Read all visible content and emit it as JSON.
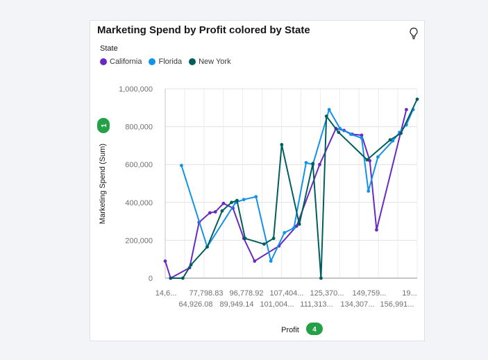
{
  "card": {
    "title": "Marketing Spend by Profit colored by State",
    "icon": "lightbulb-icon"
  },
  "legend": {
    "title": "State",
    "items": [
      {
        "label": "California",
        "color": "#6929c4"
      },
      {
        "label": "Florida",
        "color": "#1192e8"
      },
      {
        "label": "New York",
        "color": "#005d5d"
      }
    ]
  },
  "axes": {
    "ylabel": "Marketing Spend (Sum)",
    "xlabel": "Profit",
    "ybadge": "1",
    "xbadge": "4",
    "y_ticks": [
      "1,000,000",
      "800,000",
      "600,000",
      "400,000",
      "200,000",
      "0"
    ],
    "x_ticks_row1": [
      "14,6...",
      "77,798.83",
      "96,778.92",
      "107,404...",
      "125,370...",
      "149,759...",
      "19..."
    ],
    "x_ticks_row2": [
      "64,926.08",
      "89,949.14",
      "101,004...",
      "111,313...",
      "134,307...",
      "156,991..."
    ]
  },
  "chart_data": {
    "type": "line",
    "title": "Marketing Spend by Profit colored by State",
    "xlabel": "Profit",
    "ylabel": "Marketing Spend (Sum)",
    "ylim": [
      0,
      1000000
    ],
    "legend_position": "top-left",
    "grid": true,
    "series": [
      {
        "name": "California",
        "color": "#6929c4",
        "points": [
          [
            0.0,
            90000
          ],
          [
            0.2,
            0
          ],
          [
            0.9,
            55000
          ],
          [
            1.25,
            295000
          ],
          [
            1.65,
            345000
          ],
          [
            1.85,
            350000
          ],
          [
            2.15,
            395000
          ],
          [
            2.5,
            370000
          ],
          [
            2.9,
            210000
          ],
          [
            3.3,
            90000
          ],
          [
            4.2,
            170000
          ],
          [
            4.85,
            275000
          ],
          [
            5.7,
            600000
          ],
          [
            6.3,
            790000
          ],
          [
            6.6,
            780000
          ],
          [
            6.9,
            760000
          ],
          [
            7.25,
            755000
          ],
          [
            7.55,
            620000
          ],
          [
            7.8,
            255000
          ],
          [
            8.9,
            890000
          ]
        ]
      },
      {
        "name": "Florida",
        "color": "#1192e8",
        "points": [
          [
            0.6,
            595000
          ],
          [
            1.55,
            165000
          ],
          [
            2.6,
            400000
          ],
          [
            2.9,
            415000
          ],
          [
            3.35,
            430000
          ],
          [
            3.9,
            90000
          ],
          [
            4.4,
            240000
          ],
          [
            4.75,
            265000
          ],
          [
            5.2,
            610000
          ],
          [
            5.45,
            600000
          ],
          [
            6.05,
            890000
          ],
          [
            6.45,
            790000
          ],
          [
            6.85,
            760000
          ],
          [
            7.25,
            740000
          ],
          [
            7.5,
            460000
          ],
          [
            7.85,
            640000
          ],
          [
            8.4,
            725000
          ],
          [
            8.65,
            770000
          ],
          [
            8.9,
            810000
          ],
          [
            9.15,
            890000
          ]
        ]
      },
      {
        "name": "New York",
        "color": "#005d5d",
        "points": [
          [
            0.2,
            0
          ],
          [
            0.65,
            0
          ],
          [
            0.95,
            70000
          ],
          [
            1.55,
            165000
          ],
          [
            2.1,
            355000
          ],
          [
            2.45,
            400000
          ],
          [
            2.65,
            410000
          ],
          [
            2.95,
            210000
          ],
          [
            3.65,
            180000
          ],
          [
            4.0,
            210000
          ],
          [
            4.3,
            705000
          ],
          [
            4.95,
            285000
          ],
          [
            5.45,
            605000
          ],
          [
            5.75,
            0
          ],
          [
            5.95,
            855000
          ],
          [
            6.4,
            770000
          ],
          [
            7.45,
            625000
          ],
          [
            8.3,
            730000
          ],
          [
            8.7,
            765000
          ],
          [
            9.3,
            945000
          ]
        ]
      }
    ]
  }
}
